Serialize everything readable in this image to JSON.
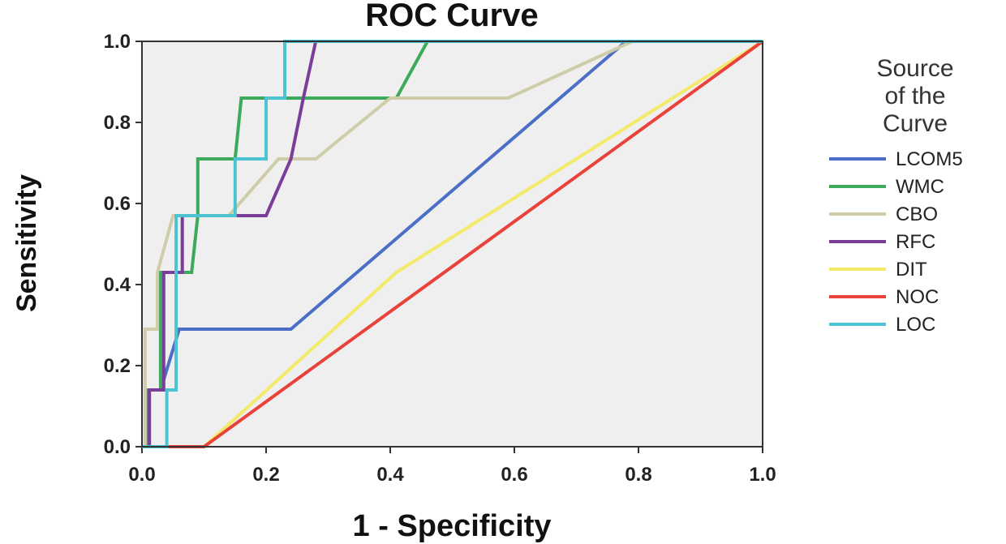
{
  "chart_data": {
    "type": "line",
    "title": "ROC Curve",
    "xlabel": "1 - Specificity",
    "ylabel": "Sensitivity",
    "xlim": [
      0.0,
      1.0
    ],
    "ylim": [
      0.0,
      1.0
    ],
    "x_ticks": [
      "0.0",
      "0.2",
      "0.4",
      "0.6",
      "0.8",
      "1.0"
    ],
    "y_ticks": [
      "0.0",
      "0.2",
      "0.4",
      "0.6",
      "0.8",
      "1.0"
    ],
    "grid": false,
    "legend": {
      "title_lines": [
        "Source",
        "of the",
        "Curve"
      ],
      "placement": "right"
    },
    "series": [
      {
        "name": "LCOM5",
        "color": "#4a6fc4",
        "points": [
          [
            0,
            0
          ],
          [
            0.01,
            0
          ],
          [
            0.01,
            0.14
          ],
          [
            0.03,
            0.14
          ],
          [
            0.06,
            0.29
          ],
          [
            0.24,
            0.29
          ],
          [
            0.78,
            1.0
          ],
          [
            1.0,
            1.0
          ]
        ]
      },
      {
        "name": "WMC",
        "color": "#3caa5a",
        "points": [
          [
            0,
            0
          ],
          [
            0.01,
            0
          ],
          [
            0.01,
            0.14
          ],
          [
            0.03,
            0.14
          ],
          [
            0.03,
            0.43
          ],
          [
            0.08,
            0.43
          ],
          [
            0.09,
            0.57
          ],
          [
            0.09,
            0.71
          ],
          [
            0.15,
            0.71
          ],
          [
            0.16,
            0.86
          ],
          [
            0.41,
            0.86
          ],
          [
            0.46,
            1.0
          ],
          [
            1.0,
            1.0
          ]
        ]
      },
      {
        "name": "CBO",
        "color": "#cfcca8",
        "points": [
          [
            0,
            0
          ],
          [
            0.005,
            0
          ],
          [
            0.005,
            0.29
          ],
          [
            0.025,
            0.29
          ],
          [
            0.025,
            0.43
          ],
          [
            0.05,
            0.57
          ],
          [
            0.14,
            0.57
          ],
          [
            0.22,
            0.71
          ],
          [
            0.28,
            0.71
          ],
          [
            0.4,
            0.86
          ],
          [
            0.59,
            0.86
          ],
          [
            0.79,
            1.0
          ],
          [
            1.0,
            1.0
          ]
        ]
      },
      {
        "name": "RFC",
        "color": "#7a3e9a",
        "points": [
          [
            0,
            0
          ],
          [
            0.012,
            0
          ],
          [
            0.012,
            0.14
          ],
          [
            0.035,
            0.14
          ],
          [
            0.035,
            0.43
          ],
          [
            0.065,
            0.43
          ],
          [
            0.065,
            0.57
          ],
          [
            0.2,
            0.57
          ],
          [
            0.24,
            0.71
          ],
          [
            0.26,
            0.86
          ],
          [
            0.28,
            1.0
          ],
          [
            1.0,
            1.0
          ]
        ]
      },
      {
        "name": "DIT",
        "color": "#f2ea68",
        "points": [
          [
            0,
            0
          ],
          [
            0.1,
            0
          ],
          [
            0.41,
            0.43
          ],
          [
            1.0,
            1.0
          ]
        ]
      },
      {
        "name": "NOC",
        "color": "#e8423a",
        "points": [
          [
            0,
            0
          ],
          [
            0.1,
            0
          ],
          [
            1.0,
            1.0
          ]
        ]
      },
      {
        "name": "LOC",
        "color": "#4cc3d1",
        "points": [
          [
            0,
            0
          ],
          [
            0.04,
            0
          ],
          [
            0.04,
            0.14
          ],
          [
            0.055,
            0.14
          ],
          [
            0.055,
            0.57
          ],
          [
            0.15,
            0.57
          ],
          [
            0.15,
            0.71
          ],
          [
            0.2,
            0.71
          ],
          [
            0.2,
            0.86
          ],
          [
            0.23,
            0.86
          ],
          [
            0.23,
            1.0
          ],
          [
            1.0,
            1.0
          ]
        ]
      }
    ]
  }
}
